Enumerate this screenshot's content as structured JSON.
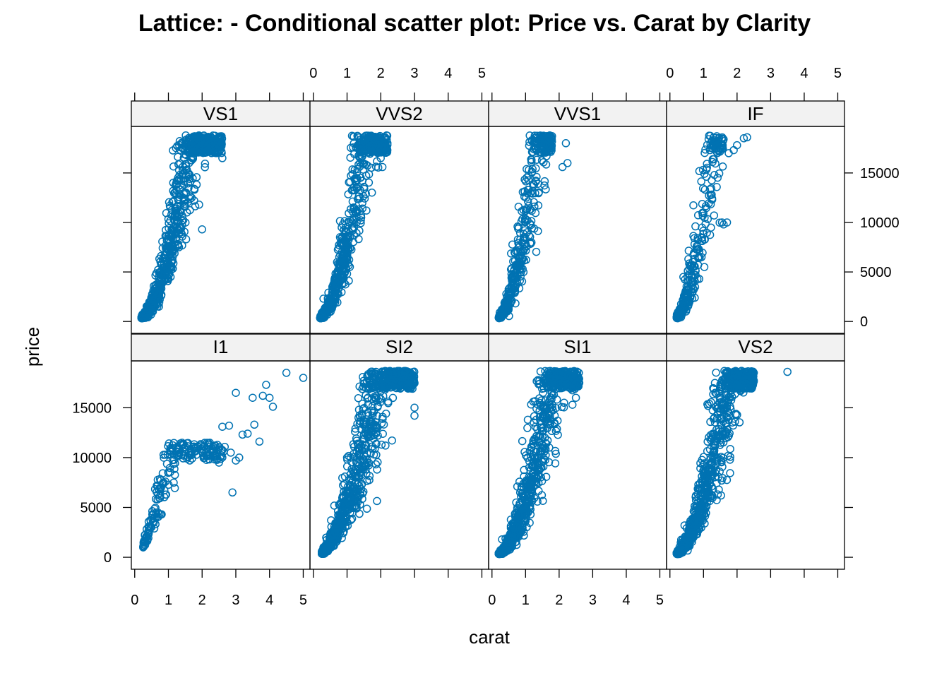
{
  "chart_data": {
    "type": "scatter",
    "title": "Lattice: - Conditional scatter plot: Price vs. Carat by Clarity",
    "xlabel": "carat",
    "ylabel": "price",
    "xlim": [
      -0.1,
      5.2
    ],
    "ylim": [
      -1200,
      19700
    ],
    "x_ticks": [
      0,
      1,
      2,
      3,
      4,
      5
    ],
    "y_ticks": [
      0,
      5000,
      10000,
      15000
    ],
    "grid": false,
    "marker": "open-circle",
    "point_color": "#0072B2",
    "strip_color": "#f2f2f2",
    "layout": {
      "columns": 4,
      "rows": 2,
      "order": "bottom-left-first"
    },
    "panels": [
      {
        "name": "I1",
        "row": "bottom",
        "col": 1,
        "shape": {
          "carat_range": [
            0.25,
            2.7
          ],
          "price_scale": 9200,
          "price_exponent": 1.45,
          "spread": 0.22,
          "max_price": 11500,
          "count": 220
        },
        "points": [
          [
            0.3,
            2200
          ],
          [
            2.5,
            9500
          ],
          [
            2.6,
            13100
          ],
          [
            2.8,
            13200
          ],
          [
            3.0,
            16500
          ],
          [
            3.2,
            12300
          ],
          [
            3.35,
            12400
          ],
          [
            3.5,
            16000
          ],
          [
            3.55,
            13300
          ],
          [
            3.7,
            11600
          ],
          [
            3.8,
            16200
          ],
          [
            3.9,
            17300
          ],
          [
            4.0,
            16000
          ],
          [
            4.1,
            15100
          ],
          [
            4.5,
            18500
          ],
          [
            5.0,
            18000
          ],
          [
            3.0,
            9700
          ],
          [
            3.1,
            10000
          ],
          [
            2.9,
            6500
          ],
          [
            2.85,
            10500
          ]
        ]
      },
      {
        "name": "SI2",
        "row": "bottom",
        "col": 2,
        "shape": {
          "carat_range": [
            0.25,
            3.0
          ],
          "price_scale": 5200,
          "price_exponent": 1.9,
          "spread": 0.28,
          "max_price": 18700,
          "count": 950
        },
        "points": [
          [
            1.0,
            10000
          ],
          [
            3.0,
            14200
          ],
          [
            3.0,
            15000
          ],
          [
            3.0,
            17500
          ],
          [
            2.9,
            18300
          ]
        ]
      },
      {
        "name": "SI1",
        "row": "bottom",
        "col": 3,
        "shape": {
          "carat_range": [
            0.2,
            2.6
          ],
          "price_scale": 5600,
          "price_exponent": 2.0,
          "spread": 0.28,
          "max_price": 18700,
          "count": 950
        },
        "points": [
          [
            0.3,
            1800
          ],
          [
            2.5,
            16000
          ],
          [
            2.6,
            17500
          ]
        ]
      },
      {
        "name": "VS2",
        "row": "bottom",
        "col": 4,
        "shape": {
          "carat_range": [
            0.2,
            2.5
          ],
          "price_scale": 6200,
          "price_exponent": 2.0,
          "spread": 0.28,
          "max_price": 18700,
          "count": 950
        },
        "points": [
          [
            3.5,
            18600
          ]
        ]
      },
      {
        "name": "VS1",
        "row": "top",
        "col": 1,
        "shape": {
          "carat_range": [
            0.2,
            2.6
          ],
          "price_scale": 6700,
          "price_exponent": 2.05,
          "spread": 0.28,
          "max_price": 18800,
          "count": 850
        },
        "points": [
          [
            2.6,
            16500
          ],
          [
            2.55,
            18700
          ],
          [
            2.0,
            9300
          ]
        ]
      },
      {
        "name": "VVS2",
        "row": "top",
        "col": 2,
        "shape": {
          "carat_range": [
            0.2,
            2.2
          ],
          "price_scale": 8000,
          "price_exponent": 2.1,
          "spread": 0.28,
          "max_price": 18800,
          "count": 650
        },
        "points": [
          [
            2.1,
            17500
          ],
          [
            2.0,
            16500
          ],
          [
            2.05,
            15600
          ],
          [
            0.3,
            2300
          ]
        ]
      },
      {
        "name": "VVS1",
        "row": "top",
        "col": 3,
        "shape": {
          "carat_range": [
            0.2,
            1.8
          ],
          "price_scale": 9500,
          "price_exponent": 2.1,
          "spread": 0.3,
          "max_price": 18800,
          "count": 450
        },
        "points": [
          [
            2.2,
            18000
          ],
          [
            2.25,
            16000
          ],
          [
            2.1,
            15600
          ],
          [
            1.7,
            18600
          ],
          [
            1.5,
            18700
          ],
          [
            1.55,
            17500
          ],
          [
            1.45,
            17500
          ]
        ]
      },
      {
        "name": "IF",
        "row": "top",
        "col": 4,
        "shape": {
          "carat_range": [
            0.2,
            1.6
          ],
          "price_scale": 10500,
          "price_exponent": 2.1,
          "spread": 0.33,
          "max_price": 18800,
          "count": 300
        },
        "points": [
          [
            2.3,
            18600
          ],
          [
            2.2,
            18500
          ],
          [
            2.0,
            17800
          ],
          [
            1.9,
            17300
          ],
          [
            1.75,
            17000
          ],
          [
            1.6,
            18400
          ],
          [
            1.5,
            17500
          ],
          [
            1.7,
            10000
          ],
          [
            1.6,
            9800
          ],
          [
            1.55,
            10000
          ],
          [
            0.7,
            6700
          ],
          [
            0.55,
            6300
          ],
          [
            0.4,
            4500
          ]
        ]
      }
    ]
  }
}
